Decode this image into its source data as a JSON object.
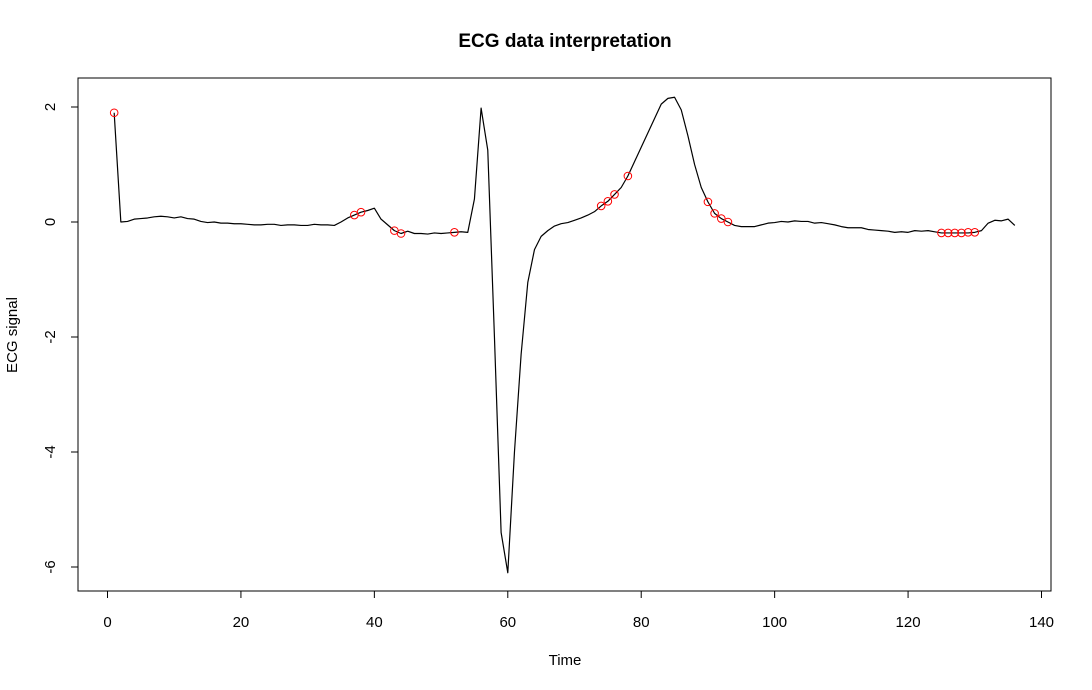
{
  "chart_data": {
    "type": "line",
    "title": "ECG data interpretation",
    "xlabel": "Time",
    "ylabel": "ECG signal",
    "xlim": [
      0,
      140
    ],
    "ylim": [
      -6,
      2
    ],
    "xticks": [
      0,
      20,
      40,
      60,
      80,
      100,
      120,
      140
    ],
    "yticks": [
      -6,
      -4,
      -2,
      0,
      2
    ],
    "grid": false,
    "series": [
      {
        "kind": "line",
        "color": "#000000",
        "x": [
          1,
          2,
          3,
          4,
          5,
          6,
          7,
          8,
          9,
          10,
          11,
          12,
          13,
          14,
          15,
          16,
          17,
          18,
          19,
          20,
          21,
          22,
          23,
          24,
          25,
          26,
          27,
          28,
          29,
          30,
          31,
          32,
          33,
          34,
          35,
          36,
          37,
          38,
          39,
          40,
          41,
          42,
          43,
          44,
          45,
          46,
          47,
          48,
          49,
          50,
          51,
          52,
          53,
          54,
          55,
          56,
          57,
          58,
          59,
          60,
          61,
          62,
          63,
          64,
          65,
          66,
          67,
          68,
          69,
          70,
          71,
          72,
          73,
          74,
          75,
          76,
          77,
          78,
          79,
          80,
          81,
          82,
          83,
          84,
          85,
          86,
          87,
          88,
          89,
          90,
          91,
          92,
          93,
          94,
          95,
          96,
          97,
          98,
          99,
          100,
          101,
          102,
          103,
          104,
          105,
          106,
          107,
          108,
          109,
          110,
          111,
          112,
          113,
          114,
          115,
          116,
          117,
          118,
          119,
          120,
          121,
          122,
          123,
          124,
          125,
          126,
          127,
          128,
          129,
          130,
          131,
          132,
          133,
          134,
          135,
          136
        ],
        "y": [
          1.9,
          0.0,
          0.01,
          0.05,
          0.06,
          0.07,
          0.09,
          0.1,
          0.09,
          0.07,
          0.09,
          0.06,
          0.05,
          0.01,
          -0.01,
          0.0,
          -0.02,
          -0.02,
          -0.03,
          -0.03,
          -0.04,
          -0.05,
          -0.05,
          -0.04,
          -0.04,
          -0.06,
          -0.05,
          -0.05,
          -0.06,
          -0.06,
          -0.04,
          -0.05,
          -0.05,
          -0.06,
          0.0,
          0.07,
          0.12,
          0.17,
          0.2,
          0.24,
          0.05,
          -0.05,
          -0.15,
          -0.2,
          -0.16,
          -0.2,
          -0.2,
          -0.21,
          -0.19,
          -0.2,
          -0.19,
          -0.18,
          -0.17,
          -0.18,
          0.4,
          1.98,
          1.25,
          -2.0,
          -5.4,
          -6.1,
          -4.0,
          -2.3,
          -1.05,
          -0.48,
          -0.25,
          -0.15,
          -0.07,
          -0.03,
          -0.01,
          0.03,
          0.07,
          0.12,
          0.18,
          0.28,
          0.36,
          0.48,
          0.6,
          0.8,
          1.05,
          1.3,
          1.55,
          1.8,
          2.05,
          2.15,
          2.17,
          1.95,
          1.5,
          1.0,
          0.6,
          0.35,
          0.15,
          0.06,
          0.0,
          -0.06,
          -0.08,
          -0.08,
          -0.08,
          -0.05,
          -0.02,
          -0.01,
          0.01,
          0.0,
          0.02,
          0.01,
          0.01,
          -0.02,
          -0.01,
          -0.03,
          -0.05,
          -0.08,
          -0.1,
          -0.1,
          -0.1,
          -0.13,
          -0.14,
          -0.15,
          -0.16,
          -0.18,
          -0.17,
          -0.18,
          -0.15,
          -0.16,
          -0.15,
          -0.17,
          -0.19,
          -0.19,
          -0.19,
          -0.19,
          -0.19,
          -0.18,
          -0.15,
          -0.02,
          0.03,
          0.02,
          0.05,
          -0.06
        ]
      },
      {
        "kind": "points",
        "marker": "open-circle",
        "color": "#ff0000",
        "x": [
          1,
          37,
          38,
          43,
          44,
          52,
          74,
          75,
          76,
          78,
          90,
          91,
          92,
          93,
          125,
          126,
          127,
          128,
          129,
          130
        ],
        "y": [
          1.9,
          0.12,
          0.17,
          -0.15,
          -0.2,
          -0.18,
          0.28,
          0.36,
          0.48,
          0.8,
          0.35,
          0.15,
          0.06,
          0.0,
          -0.19,
          -0.19,
          -0.19,
          -0.19,
          -0.18,
          -0.18
        ]
      }
    ]
  }
}
